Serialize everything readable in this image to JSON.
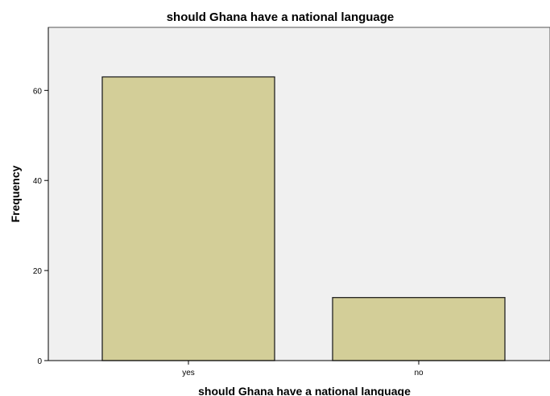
{
  "chart_data": {
    "type": "bar",
    "title": "should Ghana have a national language",
    "xlabel": "should Ghana have a national language",
    "ylabel": "Frequency",
    "categories": [
      "yes",
      "no"
    ],
    "values": [
      63,
      14
    ],
    "ylim": [
      0,
      74
    ],
    "yticks": [
      0,
      20,
      40,
      60
    ],
    "grid": false,
    "legend": "none",
    "colors": {
      "bar_fill": "#d3ce98",
      "bar_stroke": "#222222",
      "plot_background": "#f0f0f0",
      "plot_border": "#555555"
    }
  }
}
